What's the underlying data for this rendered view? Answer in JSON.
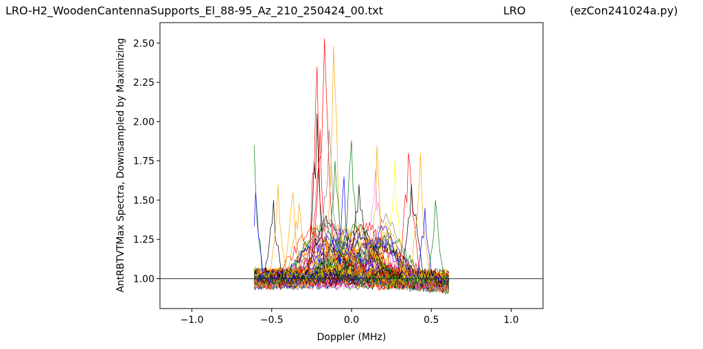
{
  "chart_data": {
    "type": "line",
    "title_left": "LRO-H2_WoodenCantennaSupports_El_88-95_Az_210_250424_00.txt",
    "title_center": "LRO",
    "title_right": "(ezCon241024a.py)",
    "xlabel": "Doppler (MHz)",
    "ylabel": "AntRBTVTMax Spectra, Downsampled by Maximizing",
    "xlim": [
      -1.2,
      1.2
    ],
    "ylim": [
      0.81,
      2.63
    ],
    "xticks": [
      -1.0,
      -0.5,
      0.0,
      0.5,
      1.0
    ],
    "xtick_labels": [
      "−1.0",
      "−0.5",
      "0.0",
      "0.5",
      "1.0"
    ],
    "yticks": [
      1.0,
      1.25,
      1.5,
      1.75,
      2.0,
      2.25,
      2.5
    ],
    "ytick_labels": [
      "1.00",
      "1.25",
      "1.50",
      "1.75",
      "2.00",
      "2.25",
      "2.50"
    ],
    "reference_line_y": 1.0,
    "grid": false,
    "doppler_range": [
      -0.61,
      0.61
    ],
    "series_colors": [
      "#ff0000",
      "#ffa500",
      "#ffff00",
      "#008000",
      "#0000ff",
      "#4b0082",
      "#ee82ee",
      "#000000",
      "#808080"
    ],
    "series_count": 90,
    "notable_peaks": [
      {
        "x": -0.61,
        "y": 1.85,
        "color": "#008000"
      },
      {
        "x": -0.6,
        "y": 1.55,
        "color": "#0000ff"
      },
      {
        "x": -0.49,
        "y": 1.5,
        "color": "#000000"
      },
      {
        "x": -0.46,
        "y": 1.6,
        "color": "#ffa500"
      },
      {
        "x": -0.37,
        "y": 1.55,
        "color": "#ffa500"
      },
      {
        "x": -0.33,
        "y": 1.48,
        "color": "#ffa500"
      },
      {
        "x": -0.22,
        "y": 2.05,
        "color": "#000000"
      },
      {
        "x": -0.22,
        "y": 2.35,
        "color": "#ff0000"
      },
      {
        "x": -0.2,
        "y": 1.95,
        "color": "#ff0000"
      },
      {
        "x": -0.17,
        "y": 2.53,
        "color": "#ff0000"
      },
      {
        "x": -0.14,
        "y": 1.95,
        "color": "#808080"
      },
      {
        "x": -0.11,
        "y": 2.48,
        "color": "#ffa500"
      },
      {
        "x": -0.1,
        "y": 1.75,
        "color": "#008000"
      },
      {
        "x": -0.05,
        "y": 1.65,
        "color": "#0000ff"
      },
      {
        "x": 0.0,
        "y": 1.88,
        "color": "#008000"
      },
      {
        "x": 0.05,
        "y": 1.6,
        "color": "#000000"
      },
      {
        "x": 0.15,
        "y": 1.7,
        "color": "#ee82ee"
      },
      {
        "x": 0.16,
        "y": 1.85,
        "color": "#ffa500"
      },
      {
        "x": 0.27,
        "y": 1.75,
        "color": "#ffff00"
      },
      {
        "x": 0.36,
        "y": 1.8,
        "color": "#ff0000"
      },
      {
        "x": 0.38,
        "y": 1.6,
        "color": "#000000"
      },
      {
        "x": 0.43,
        "y": 1.8,
        "color": "#ffa500"
      },
      {
        "x": 0.46,
        "y": 1.45,
        "color": "#0000ff"
      },
      {
        "x": 0.53,
        "y": 1.5,
        "color": "#008000"
      }
    ]
  }
}
